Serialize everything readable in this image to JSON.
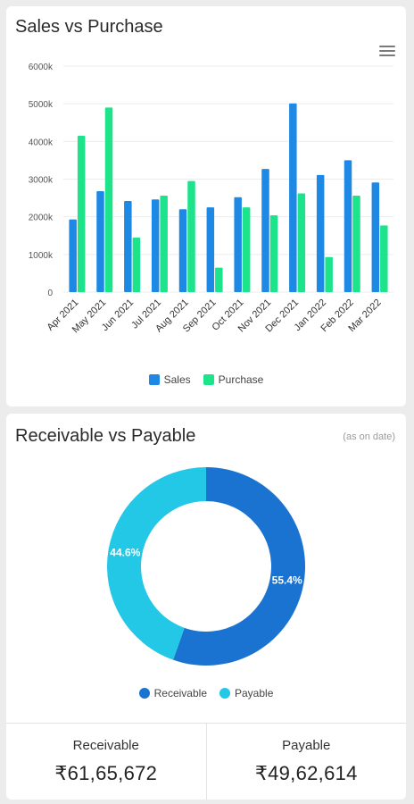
{
  "sales_card": {
    "title": "Sales vs Purchase"
  },
  "rp_card": {
    "title": "Receivable vs Payable",
    "note": "(as on date)",
    "totals": [
      {
        "label": "Receivable",
        "value": "₹61,65,672"
      },
      {
        "label": "Payable",
        "value": "₹49,62,614"
      }
    ]
  },
  "chart_data": [
    {
      "type": "bar",
      "title": "Sales vs Purchase",
      "categories": [
        "Apr 2021",
        "May 2021",
        "Jun 2021",
        "Jul 2021",
        "Aug 2021",
        "Sep 2021",
        "Oct 2021",
        "Nov 2021",
        "Dec 2021",
        "Jan 2022",
        "Feb 2022",
        "Mar 2022"
      ],
      "series": [
        {
          "name": "Sales",
          "color": "#1e88e5",
          "values": [
            1930,
            2680,
            2420,
            2460,
            2200,
            2250,
            2520,
            3270,
            5010,
            3110,
            3500,
            2910
          ]
        },
        {
          "name": "Purchase",
          "color": "#1de38b",
          "values": [
            4150,
            4900,
            1450,
            2560,
            2950,
            650,
            2250,
            2040,
            2620,
            930,
            2560,
            1770
          ]
        }
      ],
      "yticks": [
        "0",
        "1000k",
        "2000k",
        "3000k",
        "4000k",
        "5000k",
        "6000k"
      ],
      "ylim": [
        0,
        6000
      ],
      "legend": "bottom"
    },
    {
      "type": "pie",
      "variant": "donut",
      "title": "Receivable vs Payable",
      "slices": [
        {
          "name": "Receivable",
          "value": 55.4,
          "label": "55.4%",
          "color": "#1a73d0"
        },
        {
          "name": "Payable",
          "value": 44.6,
          "label": "44.6%",
          "color": "#22c8e6"
        }
      ],
      "legend": "bottom"
    }
  ]
}
